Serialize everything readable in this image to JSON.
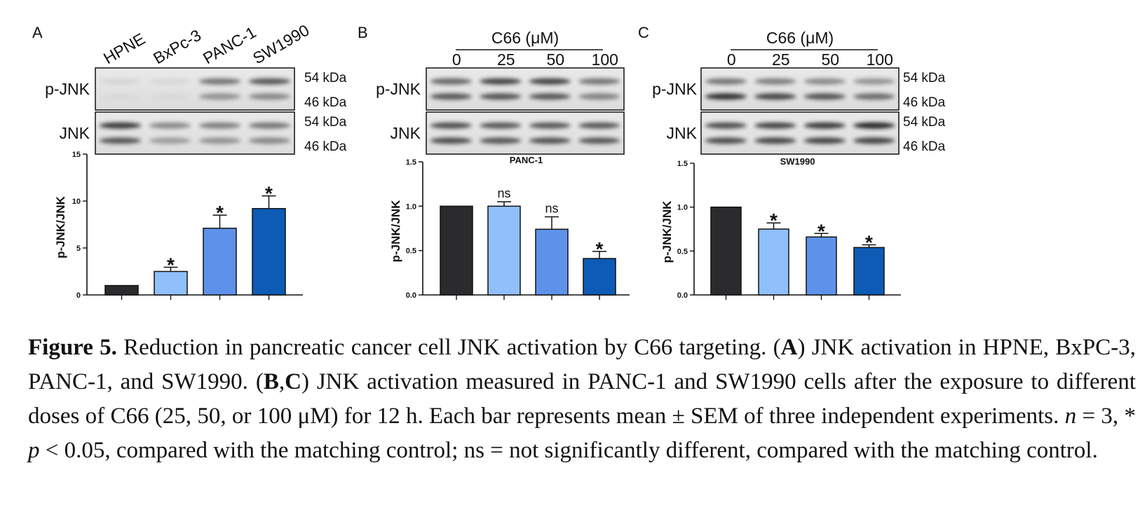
{
  "panels": [
    {
      "letter": "A",
      "header_label": "",
      "dose_labels": [],
      "lane_labels": [
        "HPNE",
        "BxPc-3",
        "PANC-1",
        "SW1990"
      ],
      "blot_rows": [
        {
          "label": "p-JNK",
          "kda": [
            "54 kDa",
            "46 kDa"
          ]
        },
        {
          "label": "JNK",
          "kda": [
            "54 kDa",
            "46 kDa"
          ]
        }
      ],
      "chart_data": {
        "type": "bar",
        "title": "",
        "ylabel": "p-JNK/JNK",
        "ylim": [
          0,
          15
        ],
        "yticks": [
          "0",
          "5",
          "10",
          "15"
        ],
        "categories": [
          "HPNE",
          "BxPc-3",
          "PANC-1",
          "SW1990"
        ],
        "values": [
          1.0,
          2.5,
          7.1,
          9.2
        ],
        "errors": [
          0,
          0.45,
          1.4,
          1.35
        ],
        "annotations": [
          "",
          "*",
          "*",
          "*"
        ],
        "colors": [
          "#2b2b2e",
          "#8fc0fb",
          "#5e92ea",
          "#0d5bb5"
        ]
      }
    },
    {
      "letter": "B",
      "header_label": "C66 (μM)",
      "dose_labels": [
        "0",
        "25",
        "50",
        "100"
      ],
      "lane_labels": [],
      "blot_rows": [
        {
          "label": "p-JNK",
          "kda": []
        },
        {
          "label": "JNK",
          "kda": []
        }
      ],
      "chart_data": {
        "type": "bar",
        "title": "PANC-1",
        "ylabel": "p-JNK/JNK",
        "ylim": [
          0,
          1.5
        ],
        "yticks": [
          "0.0",
          "0.5",
          "1.0",
          "1.5"
        ],
        "categories": [
          "0",
          "25",
          "50",
          "100"
        ],
        "values": [
          1.0,
          1.0,
          0.74,
          0.41
        ],
        "errors": [
          0,
          0.05,
          0.14,
          0.08
        ],
        "annotations": [
          "",
          "ns",
          "ns",
          "*"
        ],
        "colors": [
          "#2b2b2e",
          "#8fc0fb",
          "#5e92ea",
          "#0d5bb5"
        ]
      }
    },
    {
      "letter": "C",
      "header_label": "C66 (μM)",
      "dose_labels": [
        "0",
        "25",
        "50",
        "100"
      ],
      "lane_labels": [],
      "blot_rows": [
        {
          "label": "p-JNK",
          "kda": [
            "54 kDa",
            "46 kDa"
          ]
        },
        {
          "label": "JNK",
          "kda": [
            "54 kDa",
            "46 kDa"
          ]
        }
      ],
      "chart_data": {
        "type": "bar",
        "title": "SW1990",
        "ylabel": "p-JNK/JNK",
        "ylim": [
          0,
          1.5
        ],
        "yticks": [
          "0.0",
          "0.5",
          "1.0",
          "1.5"
        ],
        "categories": [
          "0",
          "25",
          "50",
          "100"
        ],
        "values": [
          1.0,
          0.75,
          0.66,
          0.54
        ],
        "errors": [
          0,
          0.07,
          0.04,
          0.03
        ],
        "annotations": [
          "",
          "*",
          "*",
          "*"
        ],
        "colors": [
          "#2b2b2e",
          "#8fc0fb",
          "#5e92ea",
          "#0d5bb5"
        ]
      }
    }
  ],
  "caption": {
    "label": "Figure 5.",
    "text1": " Reduction in pancreatic cancer cell JNK activation by C66 targeting. (",
    "ref_a": "A",
    "text2": ") JNK activation in HPNE, BxPC-3, PANC-1, and SW1990. (",
    "ref_b": "B",
    "sep": ",",
    "ref_c": "C",
    "text3": ") JNK activation measured in PANC-1 and SW1990 cells after the exposure to different doses of C66 (25, 50, or 100 μM) for 12 h. Each bar represents mean ± SEM of three independent experiments. ",
    "n_var": "n",
    "text4": " = 3, * ",
    "p_var": "p",
    "text5": " < 0.05, compared with the matching control; ns = not significantly different, compared with the matching control."
  }
}
